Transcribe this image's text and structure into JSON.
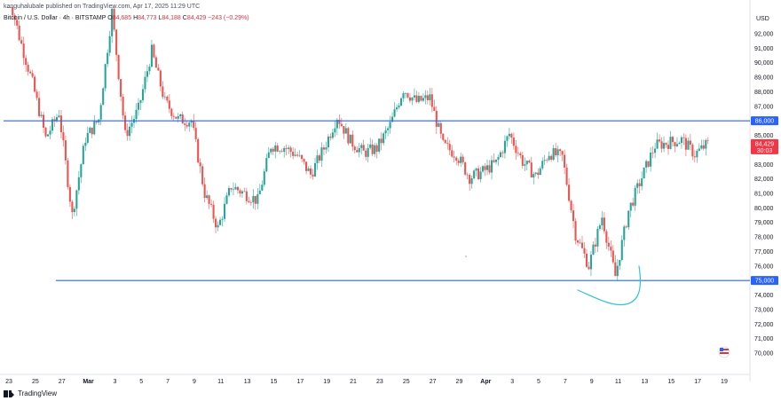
{
  "header": {
    "publisher_line": "kanguhalubale published on TradingView.com, Apr 17, 2025 11:29 UTC"
  },
  "legend": {
    "symbol": "Bitcoin / U.S. Dollar · 4h · BITSTAMP",
    "open_label": "O",
    "open": "84,685",
    "high_label": "H",
    "high": "84,773",
    "low_label": "L",
    "low": "84,188",
    "close_label": "C",
    "close": "84,429",
    "change": "−243 (−0.29%)"
  },
  "footer": {
    "brand": "TradingView"
  },
  "colors": {
    "up": "#26a69a",
    "down": "#ef5350",
    "level_line": "#2962ff",
    "current_price": "#f23645",
    "annotation": "#2ec4d6"
  },
  "chart_data": {
    "type": "candlestick",
    "currency": "USD",
    "ylim": [
      69000,
      93500
    ],
    "y_ticks": [
      70000,
      71000,
      72000,
      73000,
      74000,
      75000,
      76000,
      77000,
      78000,
      79000,
      80000,
      81000,
      82000,
      83000,
      84000,
      85000,
      86000,
      87000,
      88000,
      89000,
      90000,
      91000,
      92000
    ],
    "y_tick_labels": [
      "70,000",
      "71,000",
      "72,000",
      "73,000",
      "74,000",
      "75,000",
      "76,000",
      "77,000",
      "78,000",
      "79,000",
      "80,000",
      "81,000",
      "82,000",
      "83,000",
      "84,000",
      "85,000",
      "86,000",
      "87,000",
      "88,000",
      "89,000",
      "90,000",
      "91,000",
      "92,000"
    ],
    "x_tick_labels": [
      "23",
      "25",
      "27",
      "Mar",
      "3",
      "5",
      "7",
      "9",
      "11",
      "13",
      "15",
      "17",
      "19",
      "21",
      "23",
      "25",
      "27",
      "29",
      "Apr",
      "3",
      "5",
      "7",
      "9",
      "11",
      "13",
      "15",
      "17",
      "19"
    ],
    "x_tick_bold": [
      false,
      false,
      false,
      true,
      false,
      false,
      false,
      false,
      false,
      false,
      false,
      false,
      false,
      false,
      false,
      false,
      false,
      false,
      true,
      false,
      false,
      false,
      false,
      false,
      false,
      false,
      false,
      false
    ],
    "horizontal_levels": [
      {
        "value": 86000,
        "label": "86,000"
      },
      {
        "value": 75000,
        "label": "75,000"
      }
    ],
    "current_price": {
      "value": 84429,
      "label": "84,429",
      "countdown": "30:03"
    },
    "close_path": [
      {
        "date": "Feb 23",
        "close": 95500
      },
      {
        "date": "Feb 24",
        "close": 91800
      },
      {
        "date": "Feb 25",
        "close": 88600
      },
      {
        "date": "Feb 26",
        "close": 84800
      },
      {
        "date": "Feb 27",
        "close": 86600
      },
      {
        "date": "Feb 28",
        "close": 79500
      },
      {
        "date": "Mar 1",
        "close": 84800
      },
      {
        "date": "Mar 2",
        "close": 86100
      },
      {
        "date": "Mar 3",
        "close": 93500
      },
      {
        "date": "Mar 4",
        "close": 85000
      },
      {
        "date": "Mar 5",
        "close": 86800
      },
      {
        "date": "Mar 6",
        "close": 90800
      },
      {
        "date": "Mar 7",
        "close": 87300
      },
      {
        "date": "Mar 8",
        "close": 86100
      },
      {
        "date": "Mar 9",
        "close": 86000
      },
      {
        "date": "Mar 10",
        "close": 81000
      },
      {
        "date": "Mar 11",
        "close": 78600
      },
      {
        "date": "Mar 12",
        "close": 81500
      },
      {
        "date": "Mar 13",
        "close": 81000
      },
      {
        "date": "Mar 14",
        "close": 80500
      },
      {
        "date": "Mar 15",
        "close": 84300
      },
      {
        "date": "Mar 16",
        "close": 84200
      },
      {
        "date": "Mar 17",
        "close": 83600
      },
      {
        "date": "Mar 18",
        "close": 82300
      },
      {
        "date": "Mar 19",
        "close": 84100
      },
      {
        "date": "Mar 20",
        "close": 86300
      },
      {
        "date": "Mar 21",
        "close": 84600
      },
      {
        "date": "Mar 22",
        "close": 83800
      },
      {
        "date": "Mar 23",
        "close": 84100
      },
      {
        "date": "Mar 24",
        "close": 85700
      },
      {
        "date": "Mar 25",
        "close": 88200
      },
      {
        "date": "Mar 26",
        "close": 87300
      },
      {
        "date": "Mar 27",
        "close": 87600
      },
      {
        "date": "Mar 28",
        "close": 84300
      },
      {
        "date": "Mar 29",
        "close": 83700
      },
      {
        "date": "Mar 30",
        "close": 82100
      },
      {
        "date": "Mar 31",
        "close": 82500
      },
      {
        "date": "Apr 1",
        "close": 83100
      },
      {
        "date": "Apr 2",
        "close": 85100
      },
      {
        "date": "Apr 3",
        "close": 83200
      },
      {
        "date": "Apr 4",
        "close": 82200
      },
      {
        "date": "Apr 5",
        "close": 83800
      },
      {
        "date": "Apr 6",
        "close": 83500
      },
      {
        "date": "Apr 7",
        "close": 78200
      },
      {
        "date": "Apr 8",
        "close": 76000
      },
      {
        "date": "Apr 9",
        "close": 79400
      },
      {
        "date": "Apr 10",
        "close": 75300
      },
      {
        "date": "Apr 11",
        "close": 79800
      },
      {
        "date": "Apr 12",
        "close": 82100
      },
      {
        "date": "Apr 13",
        "close": 84300
      },
      {
        "date": "Apr 14",
        "close": 84500
      },
      {
        "date": "Apr 15",
        "close": 84700
      },
      {
        "date": "Apr 16",
        "close": 83700
      },
      {
        "date": "Apr 17",
        "close": 84429
      }
    ]
  }
}
